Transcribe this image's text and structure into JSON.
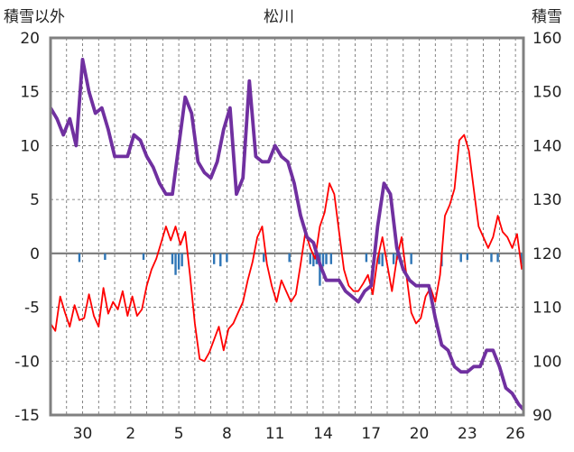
{
  "chart_data": {
    "type": "line",
    "title": "松川",
    "ylabel_left": "積雪以外",
    "ylabel_right": "積雪",
    "ylim_left": [
      -15,
      20
    ],
    "ylim_right": [
      90,
      160
    ],
    "yticks_left": [
      "20",
      "15",
      "10",
      "5",
      "0",
      "-5",
      "-10",
      "-15"
    ],
    "yticks_right": [
      "160",
      "150",
      "140",
      "130",
      "120",
      "110",
      "100",
      "90"
    ],
    "xlim": [
      28.0,
      57.5
    ],
    "xticks": [
      {
        "x": 30,
        "label": "30"
      },
      {
        "x": 33,
        "label": "2"
      },
      {
        "x": 36,
        "label": "5"
      },
      {
        "x": 39,
        "label": "8"
      },
      {
        "x": 42,
        "label": "11"
      },
      {
        "x": 45,
        "label": "14"
      },
      {
        "x": 48,
        "label": "17"
      },
      {
        "x": 51,
        "label": "20"
      },
      {
        "x": 54,
        "label": "23"
      },
      {
        "x": 57,
        "label": "26"
      }
    ],
    "grid": true,
    "colors": {
      "temperature": "#ff0000",
      "snow_depth": "#7030a0",
      "precipitation": "#2e75b6",
      "frame": "#808080",
      "zero_line": "#808080"
    },
    "series": [
      {
        "key": "temperature",
        "axis": "left",
        "x": [
          28.0,
          28.3,
          28.6,
          28.9,
          29.2,
          29.5,
          29.8,
          30.1,
          30.4,
          30.7,
          31.0,
          31.3,
          31.6,
          31.9,
          32.2,
          32.5,
          32.8,
          33.1,
          33.4,
          33.7,
          34.0,
          34.3,
          34.6,
          34.9,
          35.2,
          35.5,
          35.8,
          36.1,
          36.4,
          36.7,
          37.0,
          37.3,
          37.6,
          37.9,
          38.2,
          38.5,
          38.8,
          39.1,
          39.4,
          39.7,
          40.0,
          40.3,
          40.6,
          40.9,
          41.2,
          41.5,
          41.8,
          42.1,
          42.4,
          42.7,
          43.0,
          43.3,
          43.6,
          43.9,
          44.2,
          44.5,
          44.8,
          45.1,
          45.4,
          45.7,
          46.0,
          46.3,
          46.6,
          46.9,
          47.2,
          47.5,
          47.8,
          48.1,
          48.4,
          48.7,
          49.0,
          49.3,
          49.6,
          49.9,
          50.2,
          50.5,
          50.8,
          51.1,
          51.4,
          51.7,
          52.0,
          52.3,
          52.6,
          52.9,
          53.2,
          53.5,
          53.8,
          54.1,
          54.4,
          54.7,
          55.0,
          55.3,
          55.6,
          55.9,
          56.2,
          56.5,
          56.8,
          57.1,
          57.4
        ],
        "values": [
          -6.5,
          -7.2,
          -4.0,
          -5.5,
          -6.8,
          -4.8,
          -6.2,
          -6.0,
          -3.8,
          -5.8,
          -6.8,
          -3.2,
          -5.6,
          -4.5,
          -5.2,
          -3.5,
          -5.8,
          -4.0,
          -5.8,
          -5.2,
          -3.0,
          -1.5,
          -0.5,
          1.0,
          2.5,
          1.2,
          2.5,
          0.8,
          2.0,
          -2.0,
          -6.5,
          -9.8,
          -10.0,
          -9.2,
          -8.0,
          -6.8,
          -9.0,
          -7.0,
          -6.5,
          -5.5,
          -4.5,
          -2.5,
          -0.8,
          1.5,
          2.5,
          -1.0,
          -3.0,
          -4.5,
          -2.5,
          -3.5,
          -4.5,
          -3.8,
          -1.0,
          2.0,
          0.5,
          -0.5,
          2.5,
          3.8,
          6.5,
          5.5,
          2.0,
          -1.5,
          -3.0,
          -3.5,
          -3.5,
          -2.8,
          -2.0,
          -3.8,
          -0.5,
          1.5,
          -1.0,
          -3.5,
          -0.5,
          1.5,
          -2.0,
          -5.5,
          -6.5,
          -6.0,
          -4.0,
          -3.2,
          -4.5,
          -2.0,
          3.5,
          4.5,
          6.0,
          10.5,
          11.0,
          9.5,
          6.0,
          2.5,
          1.5,
          0.5,
          1.5,
          3.5,
          2.0,
          1.5,
          0.5,
          1.8,
          -1.5
        ]
      },
      {
        "key": "snow_depth",
        "axis": "right",
        "x": [
          28.0,
          28.4,
          28.8,
          29.2,
          29.6,
          30.0,
          30.4,
          30.8,
          31.2,
          31.6,
          32.0,
          32.4,
          32.8,
          33.2,
          33.6,
          34.0,
          34.4,
          34.8,
          35.2,
          35.6,
          36.0,
          36.4,
          36.8,
          37.2,
          37.6,
          38.0,
          38.4,
          38.8,
          39.2,
          39.6,
          40.0,
          40.4,
          40.8,
          41.2,
          41.6,
          42.0,
          42.4,
          42.8,
          43.2,
          43.6,
          44.0,
          44.4,
          44.8,
          45.2,
          45.6,
          46.0,
          46.4,
          46.8,
          47.2,
          47.6,
          48.0,
          48.4,
          48.8,
          49.2,
          49.6,
          50.0,
          50.4,
          50.8,
          51.2,
          51.6,
          52.0,
          52.4,
          52.8,
          53.2,
          53.6,
          54.0,
          54.4,
          54.8,
          55.2,
          55.6,
          56.0,
          56.4,
          56.8,
          57.2,
          57.5
        ],
        "values": [
          147,
          145,
          142,
          145,
          140,
          156,
          150,
          146,
          147,
          143,
          138,
          138,
          138,
          142,
          141,
          138,
          136,
          133,
          131,
          131,
          140,
          149,
          146,
          137,
          135,
          134,
          137,
          143,
          147,
          131,
          134,
          152,
          138,
          137,
          137,
          140,
          138,
          137,
          133,
          127,
          123,
          122,
          118,
          115,
          115,
          115,
          113,
          112,
          111,
          113,
          114,
          125,
          133,
          131,
          121,
          117,
          115,
          114,
          114,
          114,
          108,
          103,
          102,
          99,
          98,
          98,
          99,
          99,
          102,
          102,
          99,
          95,
          94,
          92,
          91
        ]
      },
      {
        "key": "precipitation",
        "axis": "left",
        "type": "bar",
        "x": [
          29.8,
          31.4,
          33.8,
          35.6,
          35.8,
          36.0,
          36.2,
          38.2,
          38.6,
          39.0,
          41.3,
          42.9,
          44.2,
          44.4,
          44.6,
          44.8,
          45.0,
          45.2,
          45.5,
          47.7,
          48.5,
          48.7,
          49.4,
          49.6,
          50.5,
          52.4,
          53.6,
          54.0,
          55.5,
          55.9,
          57.4
        ],
        "values": [
          -0.8,
          -0.6,
          -0.6,
          -1.0,
          -2.0,
          -1.5,
          -1.2,
          -1.0,
          -1.2,
          -0.8,
          -0.8,
          -0.8,
          -1.0,
          -1.2,
          -1.0,
          -3.0,
          -1.2,
          -1.0,
          -1.0,
          -0.8,
          -1.0,
          -1.2,
          -1.0,
          -0.6,
          -1.0,
          -1.2,
          -0.8,
          -0.6,
          -0.8,
          -0.8,
          -1.0
        ]
      }
    ]
  }
}
